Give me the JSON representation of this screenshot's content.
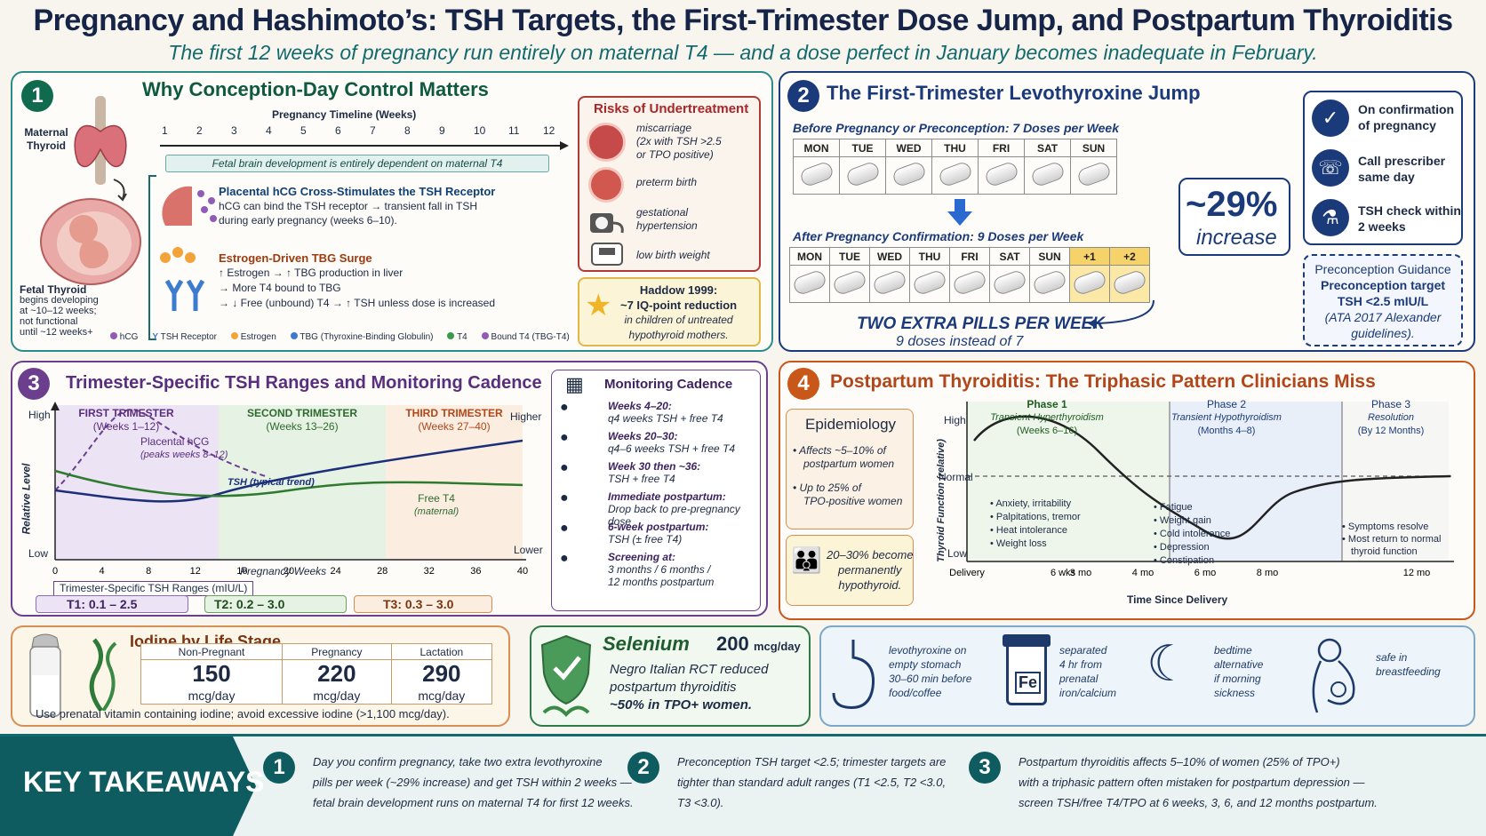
{
  "header": {
    "title": "Pregnancy and Hashimoto’s: TSH Targets, the First-Trimester Dose Jump, and Postpartum Thyroiditis",
    "subtitle": "The first 12 weeks of pregnancy run entirely on maternal T4 — and a dose perfect in January becomes inadequate in February."
  },
  "colors": {
    "navy": "#1b3a7a",
    "teal": "#136a6e",
    "green": "#0f5a3a",
    "orange": "#c9571a",
    "purple": "#6b3f8e",
    "red": "#a8262a"
  },
  "p1": {
    "num": "1",
    "title": "Why Conception-Day Control Matters",
    "maternal_thyroid": "Maternal Thyroid",
    "timeline_label": "Pregnancy Timeline (Weeks)",
    "weeks": [
      "1",
      "2",
      "3",
      "4",
      "5",
      "6",
      "7",
      "8",
      "9",
      "10",
      "11",
      "12"
    ],
    "banner": "Fetal brain development is entirely dependent on maternal T4",
    "hcg_title": "Placental hCG Cross-Stimulates the TSH Receptor",
    "hcg_l1": "hCG can bind the TSH receptor → transient fall in TSH",
    "hcg_l2": "during early pregnancy (weeks 6–10).",
    "estro_title": "Estrogen-Driven TBG Surge",
    "estro_l1": "↑ Estrogen → ↑ TBG production in liver",
    "estro_l2": "→ More T4 bound to TBG",
    "estro_l3": "→ ↓ Free (unbound) T4 → ↑ TSH unless dose is increased",
    "fetal_thyroid_title": "Fetal Thyroid",
    "fetal_thyroid_l1": "begins developing",
    "fetal_thyroid_l2": "at ~10–12 weeks;",
    "fetal_thyroid_l3": "not functional",
    "fetal_thyroid_l4": "until ~12 weeks+",
    "legend": [
      "hCG",
      "TSH Receptor",
      "Estrogen",
      "TBG (Thyroxine-Binding Globulin)",
      "T4",
      "Bound T4 (TBG-T4)"
    ],
    "risks_title": "Risks of Undertreatment",
    "risk1_l1": "miscarriage",
    "risk1_l2": "(2x with TSH >2.5",
    "risk1_l3": "or TPO positive)",
    "risk2": "preterm birth",
    "risk3_l1": "gestational",
    "risk3_l2": "hypertension",
    "risk4": "low birth weight",
    "haddow_title": "Haddow 1999:",
    "haddow_l1": "~7 IQ-point reduction",
    "haddow_l2": "in children of untreated",
    "haddow_l3": "hypothyroid mothers."
  },
  "p2": {
    "num": "2",
    "title": "The First-Trimester Levothyroxine Jump",
    "before_label": "Before Pregnancy or Preconception: 7 Doses per Week",
    "days": [
      "MON",
      "TUE",
      "WED",
      "THU",
      "FRI",
      "SAT",
      "SUN"
    ],
    "after_label": "After Pregnancy Confirmation: 9 Doses per Week",
    "extra_days": [
      "+1",
      "+2"
    ],
    "two_extra": "TWO EXTRA PILLS PER WEEK",
    "nine_doses": "9 doses instead of 7",
    "pct": "~29%",
    "increase": "increase",
    "step1_l1": "On confirmation",
    "step1_l2": "of pregnancy",
    "step2_l1": "Call prescriber",
    "step2_l2": "same day",
    "step3_l1": "TSH check within",
    "step3_l2": "2 weeks",
    "precon_title": "Preconception Guidance",
    "precon_l1": "Preconception target",
    "precon_l2": "TSH <2.5 mIU/L",
    "precon_l3": "(ATA 2017 Alexander",
    "precon_l4": "guidelines)."
  },
  "p3": {
    "num": "3",
    "title": "Trimester-Specific TSH Ranges and Monitoring Cadence",
    "trimesters": [
      {
        "name": "FIRST TRIMESTER",
        "weeks": "(Weeks 1–12)"
      },
      {
        "name": "SECOND TRIMESTER",
        "weeks": "(Weeks 13–26)"
      },
      {
        "name": "THIRD TRIMESTER",
        "weeks": "(Weeks 27–40)"
      }
    ],
    "high": "High",
    "low": "Low",
    "higher": "Higher",
    "lower": "Lower",
    "ylabel": "Relative Level",
    "xlabel": "Pregnancy Weeks",
    "x_ticks": [
      "0",
      "4",
      "8",
      "12",
      "16",
      "20",
      "24",
      "28",
      "32",
      "36",
      "40"
    ],
    "hcg_label": "Placental hCG",
    "hcg_sub": "(peaks weeks 8–12)",
    "tsh_label": "TSH (typical trend)",
    "t4_label": "Free T4",
    "t4_sub": "(maternal)",
    "ranges_title": "Trimester-Specific TSH Ranges (mIU/L)",
    "t1": "T1:  0.1 – 2.5",
    "t2": "T2: 0.2 – 3.0",
    "t3": "T3: 0.3 – 3.0",
    "mon_title": "Monitoring Cadence",
    "mon": [
      {
        "h": "Weeks 4–20:",
        "t": "q4 weeks TSH + free T4"
      },
      {
        "h": "Weeks 20–30:",
        "t": "q4–6 weeks TSH + free T4"
      },
      {
        "h": "Week 30 then ~36:",
        "t": "TSH + free T4"
      },
      {
        "h": "Immediate postpartum:",
        "t": "Drop back to pre-pregnancy",
        "t2": "dose"
      },
      {
        "h": "6-week postpartum:",
        "t": "TSH (± free T4)"
      },
      {
        "h": "Screening at:",
        "t": "3 months / 6 months /",
        "t2": "12 months postpartum"
      }
    ]
  },
  "p4": {
    "num": "4",
    "title": "Postpartum Thyroiditis: The Triphasic Pattern Clinicians Miss",
    "epi_title": "Epidemiology",
    "epi1_l1": "Affects ~5–10% of",
    "epi1_l2": "postpartum women",
    "epi2_l1": "Up to 25% of",
    "epi2_l2": "TPO-positive women",
    "perm_l1": "20–30% become",
    "perm_l2": "permanently",
    "perm_l3": "hypothyroid.",
    "phase1": "Phase 1",
    "phase1_a": "Transient Hyperthyroidism",
    "phase1_b": "(Weeks 6–16)",
    "phase2": "Phase 2",
    "phase2_a": "Transient Hypothyroidism",
    "phase2_b": "(Months 4–8)",
    "phase3": "Phase 3",
    "phase3_a": "Resolution",
    "phase3_b": "(By 12 Months)",
    "high": "High",
    "normal": "Normal",
    "low": "Low",
    "ylabel": "Thyroid Function (relative)",
    "xlabel": "Time Since Delivery",
    "x_ticks": [
      "Delivery",
      "6 wks",
      "3 mo",
      "4 mo",
      "6 mo",
      "8 mo",
      "12 mo"
    ],
    "hyper_sym": [
      "Anxiety, irritability",
      "Palpitations, tremor",
      "Heat intolerance",
      "Weight loss"
    ],
    "hypo_sym": [
      "Fatigue",
      "Weight gain",
      "Cold intolerance",
      "Depression",
      "Constipation"
    ],
    "res_sym1": "Symptoms resolve",
    "res_sym2_l1": "Most return to normal",
    "res_sym2_l2": "thyroid function"
  },
  "iodine": {
    "title": "Iodine by Life Stage",
    "stages": [
      {
        "name": "Non-Pregnant",
        "val": "150",
        "unit": "mcg/day"
      },
      {
        "name": "Pregnancy",
        "val": "220",
        "unit": "mcg/day"
      },
      {
        "name": "Lactation",
        "val": "290",
        "unit": "mcg/day"
      }
    ],
    "note": "Use prenatal vitamin containing iodine; avoid excessive iodine (>1,100 mcg/day)."
  },
  "selenium": {
    "title": "Selenium",
    "dose": "200",
    "unit": "mcg/day",
    "l1": "Negro Italian RCT reduced",
    "l2": "postpartum thyroiditis",
    "l3": "~50% in TPO+ women."
  },
  "tips": {
    "t1_l1": "levothyroxine on",
    "t1_l2": "empty stomach",
    "t1_l3": "30–60 min before",
    "t1_l4": "food/coffee",
    "fe": "Fe",
    "t2_l1": "separated",
    "t2_l2": "4 hr from",
    "t2_l3": "prenatal",
    "t2_l4": "iron/calcium",
    "t3_l1": "bedtime",
    "t3_l2": "alternative",
    "t3_l3": "if morning",
    "t3_l4": "sickness",
    "t4_l1": "safe in",
    "t4_l2": "breastfeeding"
  },
  "takeaways": {
    "title": "KEY TAKEAWAYS",
    "items": [
      {
        "n": "1",
        "l1": "Day you confirm pregnancy, take two extra levothyroxine",
        "l2": "pills per week (~29% increase) and get TSH within 2 weeks —",
        "l3": "fetal brain development runs on maternal T4 for first 12 weeks."
      },
      {
        "n": "2",
        "l1": "Preconception TSH target <2.5; trimester targets are",
        "l2": "tighter than standard adult ranges (T1 <2.5, T2 <3.0,",
        "l3": "T3 <3.0)."
      },
      {
        "n": "3",
        "l1": "Postpartum thyroiditis affects 5–10% of women (25% of TPO+)",
        "l2": "with a triphasic pattern often mistaken for postpartum depression —",
        "l3": "screen TSH/free T4/TPO at 6 weeks, 3, 6, and 12 months postpartum."
      }
    ]
  }
}
